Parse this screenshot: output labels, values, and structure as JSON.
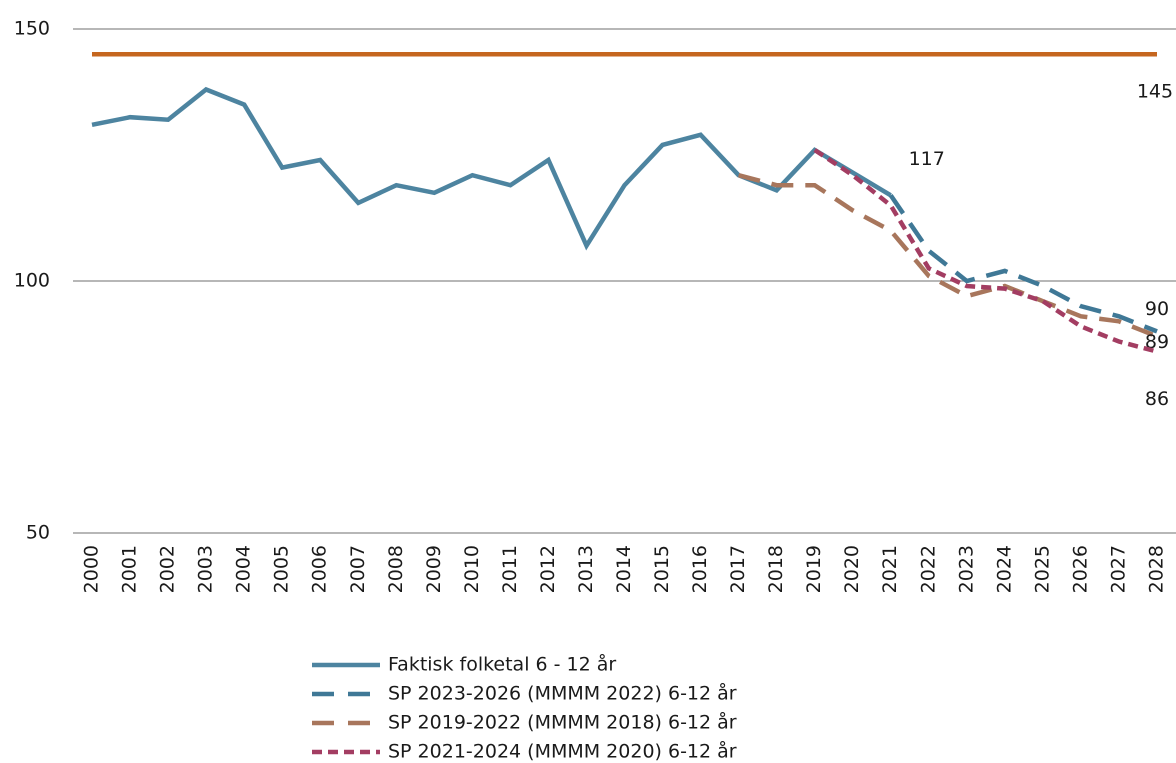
{
  "chart_data": {
    "type": "line",
    "categories": [
      "2000",
      "2001",
      "2002",
      "2003",
      "2004",
      "2005",
      "2006",
      "2007",
      "2008",
      "2009",
      "2010",
      "2011",
      "2012",
      "2013",
      "2014",
      "2015",
      "2016",
      "2017",
      "2018",
      "2019",
      "2020",
      "2021",
      "2022",
      "2023",
      "2024",
      "2025",
      "2026",
      "2027",
      "2028"
    ],
    "series": [
      {
        "color": "#c5661f",
        "dash": "solid",
        "values": [
          145,
          145,
          145,
          145,
          145,
          145,
          145,
          145,
          145,
          145,
          145,
          145,
          145,
          145,
          145,
          145,
          145,
          145,
          145,
          145,
          145,
          145,
          145,
          145,
          145,
          145,
          145,
          145,
          145
        ]
      },
      {
        "name": "Faktisk folketal 6 - 12 år",
        "color": "#4d84a0",
        "dash": "solid",
        "values": [
          131,
          132.5,
          132,
          138,
          135,
          122.5,
          124,
          115.5,
          119,
          117.5,
          121,
          119,
          124,
          107,
          119,
          127,
          129,
          121,
          118,
          126,
          121.5,
          117,
          null,
          null,
          null,
          null,
          null,
          null,
          null
        ]
      },
      {
        "name": "SP 2023-2026 (MMMM 2022) 6-12 år",
        "color": "#3f7896",
        "dash": "long",
        "values": [
          null,
          null,
          null,
          null,
          null,
          null,
          null,
          null,
          null,
          null,
          null,
          null,
          null,
          null,
          null,
          null,
          null,
          null,
          null,
          null,
          null,
          117,
          106,
          100,
          102,
          99,
          95,
          93,
          90
        ]
      },
      {
        "name": "SP 2019-2022 (MMMM 2018) 6-12 år",
        "color": "#a8765c",
        "dash": "long",
        "values": [
          null,
          null,
          null,
          null,
          null,
          null,
          null,
          null,
          null,
          null,
          null,
          null,
          null,
          null,
          null,
          null,
          null,
          121,
          119,
          119,
          114,
          110,
          101,
          97,
          99,
          96,
          93,
          92,
          89
        ]
      },
      {
        "name": "SP 2021-2024 (MMMM 2020) 6-12 år",
        "color": "#a33d62",
        "dash": "short",
        "values": [
          null,
          null,
          null,
          null,
          null,
          null,
          null,
          null,
          null,
          null,
          null,
          null,
          null,
          null,
          null,
          null,
          null,
          null,
          null,
          126,
          121,
          115,
          102.5,
          99,
          98.5,
          96,
          91,
          88,
          86
        ]
      }
    ],
    "ylim": [
      50,
      150
    ],
    "yticks": [
      50,
      100,
      150
    ],
    "grid": true
  }
}
